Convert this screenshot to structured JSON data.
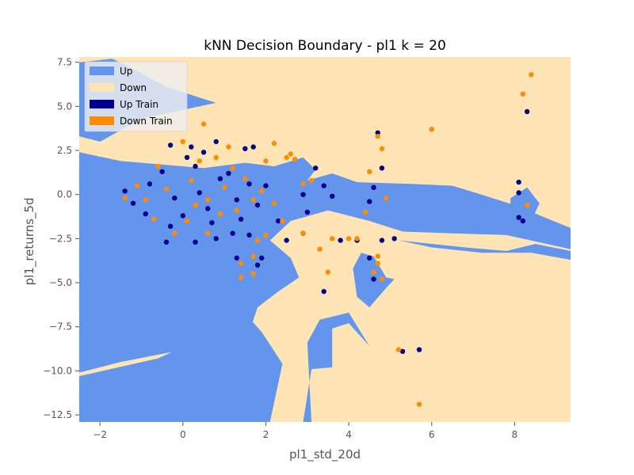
{
  "chart_data": {
    "type": "scatter",
    "title": "kNN Decision Boundary - pl1 k = 20",
    "xlabel": "pl1_std_20d",
    "ylabel": "pl1_returns_5d",
    "xlim": [
      -2.5,
      9.35
    ],
    "ylim": [
      -12.9,
      7.8
    ],
    "xticks": [
      -2,
      0,
      2,
      4,
      6,
      8
    ],
    "xtick_labels": [
      "−2",
      "0",
      "2",
      "4",
      "6",
      "8"
    ],
    "yticks": [
      7.5,
      5.0,
      2.5,
      0.0,
      -2.5,
      -5.0,
      -7.5,
      -10.0,
      -12.5
    ],
    "ytick_labels": [
      "7.5",
      "5.0",
      "2.5",
      "0.0",
      "−2.5",
      "−5.0",
      "−7.5",
      "−10.0",
      "−12.5"
    ],
    "grid": false,
    "legend_position": "top-left",
    "legend": [
      {
        "label": "Up",
        "color": "#6495ED"
      },
      {
        "label": "Down",
        "color": "#FFE4B5"
      },
      {
        "label": "Up Train",
        "color": "#00008B"
      },
      {
        "label": "Down Train",
        "color": "#FF8C00"
      }
    ],
    "regions": [
      {
        "name": "Up",
        "color": "#6495ED",
        "polygon": [
          [
            -2.5,
            2.4
          ],
          [
            -1.5,
            1.9
          ],
          [
            0.5,
            1.5
          ],
          [
            1.5,
            1.8
          ],
          [
            2.2,
            1.6
          ],
          [
            2.9,
            2.1
          ],
          [
            3.2,
            1.4
          ],
          [
            3.0,
            0.8
          ],
          [
            3.6,
            1.2
          ],
          [
            4.2,
            0.7
          ],
          [
            5.5,
            0.6
          ],
          [
            6.5,
            0.5
          ],
          [
            7.2,
            0.0
          ],
          [
            8.0,
            -0.6
          ],
          [
            9.35,
            -1.9
          ],
          [
            9.35,
            -3.1
          ],
          [
            7.8,
            -2.3
          ],
          [
            6.5,
            -2.2
          ],
          [
            5.3,
            -2.1
          ],
          [
            4.5,
            -1.5
          ],
          [
            3.5,
            -0.9
          ],
          [
            2.6,
            -1.5
          ],
          [
            2.1,
            -2.6
          ],
          [
            2.6,
            -3.6
          ],
          [
            2.8,
            -4.7
          ],
          [
            2.3,
            -5.5
          ],
          [
            1.8,
            -6.4
          ],
          [
            1.6,
            -7.8
          ],
          [
            1.1,
            -8.3
          ],
          [
            -1.5,
            -9.5
          ],
          [
            -2.5,
            -10.1
          ]
        ]
      },
      {
        "name": "Up",
        "color": "#6495ED",
        "polygon": [
          [
            -2.5,
            -12.9
          ],
          [
            -2.5,
            -10.3
          ],
          [
            -0.6,
            -9.3
          ],
          [
            0.4,
            -8.2
          ],
          [
            1.6,
            -7.0
          ],
          [
            1.9,
            -7.8
          ],
          [
            2.4,
            -9.6
          ],
          [
            2.1,
            -12.9
          ]
        ]
      },
      {
        "name": "Up",
        "color": "#6495ED",
        "polygon": [
          [
            -2.5,
            7.5
          ],
          [
            -1.7,
            7.7
          ],
          [
            -1.1,
            7.0
          ],
          [
            -0.4,
            6.1
          ],
          [
            0.8,
            5.2
          ],
          [
            -1.0,
            4.3
          ],
          [
            -2.0,
            3.0
          ],
          [
            -2.5,
            3.3
          ]
        ]
      },
      {
        "name": "Up",
        "color": "#6495ED",
        "polygon": [
          [
            2.9,
            -12.9
          ],
          [
            3.1,
            -9.9
          ],
          [
            3.6,
            -9.8
          ],
          [
            3.6,
            -7.6
          ],
          [
            4.0,
            -7.3
          ],
          [
            4.5,
            -8.6
          ],
          [
            4.0,
            -6.7
          ],
          [
            3.3,
            -7.1
          ],
          [
            3.0,
            -8.4
          ],
          [
            3.1,
            -12.9
          ]
        ]
      },
      {
        "name": "Up",
        "color": "#6495ED",
        "polygon": [
          [
            4.3,
            -3.3
          ],
          [
            4.6,
            -3.5
          ],
          [
            4.9,
            -4.7
          ],
          [
            5.1,
            -4.8
          ],
          [
            4.9,
            -5.3
          ],
          [
            4.5,
            -6.4
          ],
          [
            4.2,
            -5.8
          ],
          [
            4.1,
            -4.2
          ]
        ]
      },
      {
        "name": "Up",
        "color": "#6495ED",
        "polygon": [
          [
            5.2,
            -2.6
          ],
          [
            6.8,
            -3.0
          ],
          [
            7.8,
            -3.2
          ],
          [
            8.5,
            -2.8
          ],
          [
            9.35,
            -3.2
          ],
          [
            9.35,
            -3.7
          ],
          [
            8.4,
            -3.3
          ],
          [
            7.2,
            -3.3
          ],
          [
            6.0,
            -3.0
          ]
        ]
      },
      {
        "name": "Up",
        "color": "#6495ED",
        "polygon": [
          [
            7.9,
            -1.1
          ],
          [
            8.4,
            -1.5
          ],
          [
            8.6,
            -0.5
          ],
          [
            8.3,
            0.4
          ],
          [
            7.9,
            -0.2
          ]
        ]
      }
    ],
    "series": [
      {
        "name": "Up Train",
        "color": "#00008B",
        "points": [
          [
            8.3,
            4.7
          ],
          [
            8.1,
            0.7
          ],
          [
            8.1,
            0.1
          ],
          [
            8.1,
            -1.3
          ],
          [
            8.2,
            -1.5
          ],
          [
            4.7,
            3.5
          ],
          [
            4.8,
            1.5
          ],
          [
            4.6,
            0.4
          ],
          [
            4.5,
            -0.4
          ],
          [
            4.8,
            -2.6
          ],
          [
            5.1,
            -2.5
          ],
          [
            4.5,
            -3.6
          ],
          [
            4.6,
            -4.8
          ],
          [
            5.3,
            -8.9
          ],
          [
            5.7,
            -8.8
          ],
          [
            3.4,
            -5.5
          ],
          [
            4.2,
            -2.6
          ],
          [
            3.8,
            -2.6
          ],
          [
            3.2,
            1.5
          ],
          [
            3.4,
            0.5
          ],
          [
            2.9,
            0.0
          ],
          [
            3.0,
            -1.0
          ],
          [
            3.6,
            -0.1
          ],
          [
            2.9,
            -2.2
          ],
          [
            2.3,
            -1.5
          ],
          [
            1.9,
            -3.6
          ],
          [
            1.8,
            -4.0
          ],
          [
            1.3,
            -3.6
          ],
          [
            1.6,
            -2.3
          ],
          [
            2.5,
            -2.6
          ],
          [
            1.7,
            2.7
          ],
          [
            1.5,
            2.6
          ],
          [
            0.8,
            3.0
          ],
          [
            0.2,
            2.7
          ],
          [
            -0.3,
            2.8
          ],
          [
            1.2,
            -2.2
          ],
          [
            0.3,
            -2.7
          ],
          [
            -0.4,
            -2.7
          ],
          [
            0.8,
            -2.5
          ],
          [
            2.0,
            0.5
          ],
          [
            1.8,
            -0.6
          ],
          [
            1.3,
            -0.3
          ],
          [
            0.9,
            0.9
          ],
          [
            0.4,
            0.1
          ],
          [
            -0.2,
            -0.2
          ],
          [
            -0.8,
            0.6
          ],
          [
            -1.2,
            -0.5
          ],
          [
            -1.4,
            0.2
          ],
          [
            0.0,
            -1.2
          ],
          [
            0.6,
            -0.8
          ],
          [
            -0.5,
            1.3
          ],
          [
            0.3,
            1.6
          ],
          [
            1.1,
            1.2
          ],
          [
            -0.9,
            -1.1
          ],
          [
            0.1,
            2.1
          ],
          [
            1.6,
            0.6
          ],
          [
            0.7,
            -1.6
          ],
          [
            -0.3,
            -1.8
          ],
          [
            1.4,
            -1.4
          ],
          [
            0.5,
            2.4
          ]
        ]
      },
      {
        "name": "Down Train",
        "color": "#FF8C00",
        "points": [
          [
            8.4,
            6.8
          ],
          [
            8.2,
            5.7
          ],
          [
            8.3,
            -0.6
          ],
          [
            6.0,
            3.7
          ],
          [
            4.8,
            2.6
          ],
          [
            4.7,
            3.3
          ],
          [
            4.5,
            1.3
          ],
          [
            4.9,
            -0.2
          ],
          [
            4.4,
            -1.0
          ],
          [
            4.7,
            -3.5
          ],
          [
            4.7,
            -3.9
          ],
          [
            4.6,
            -4.4
          ],
          [
            4.8,
            -4.8
          ],
          [
            5.2,
            -8.8
          ],
          [
            5.7,
            -11.9
          ],
          [
            3.5,
            -4.4
          ],
          [
            4.0,
            -2.5
          ],
          [
            4.2,
            -2.5
          ],
          [
            3.6,
            -2.5
          ],
          [
            3.3,
            -3.1
          ],
          [
            2.9,
            -2.2
          ],
          [
            2.4,
            -1.5
          ],
          [
            2.0,
            -2.3
          ],
          [
            1.8,
            -2.6
          ],
          [
            1.7,
            -4.5
          ],
          [
            1.7,
            -3.5
          ],
          [
            1.4,
            -3.9
          ],
          [
            1.4,
            -4.7
          ],
          [
            2.6,
            2.3
          ],
          [
            2.5,
            2.1
          ],
          [
            2.7,
            2.0
          ],
          [
            2.2,
            2.9
          ],
          [
            2.0,
            1.9
          ],
          [
            1.1,
            2.7
          ],
          [
            0.5,
            4.0
          ],
          [
            0.0,
            3.0
          ],
          [
            2.2,
            -0.5
          ],
          [
            2.9,
            0.6
          ],
          [
            3.1,
            0.8
          ],
          [
            1.9,
            0.2
          ],
          [
            1.7,
            -0.3
          ],
          [
            1.5,
            0.9
          ],
          [
            1.0,
            0.4
          ],
          [
            0.6,
            -0.3
          ],
          [
            0.2,
            0.8
          ],
          [
            -0.4,
            0.3
          ],
          [
            -0.9,
            -0.3
          ],
          [
            -1.1,
            0.5
          ],
          [
            -1.4,
            -0.2
          ],
          [
            0.1,
            -1.5
          ],
          [
            0.9,
            -1.1
          ],
          [
            -0.6,
            1.6
          ],
          [
            0.4,
            1.9
          ],
          [
            1.3,
            -0.9
          ],
          [
            -0.2,
            -2.2
          ],
          [
            0.6,
            -2.2
          ],
          [
            1.2,
            1.5
          ],
          [
            -0.7,
            -1.4
          ],
          [
            0.8,
            2.1
          ],
          [
            0.3,
            -0.6
          ]
        ]
      }
    ]
  }
}
